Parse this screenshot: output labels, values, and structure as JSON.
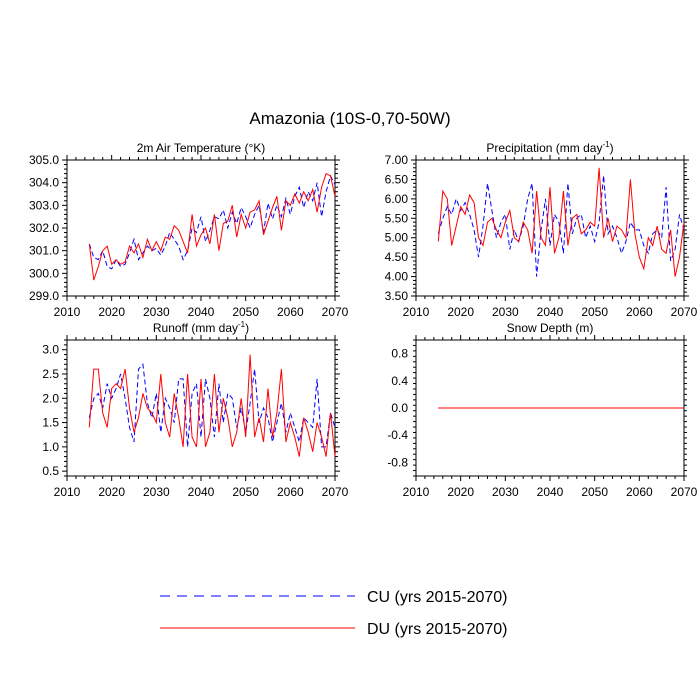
{
  "title": "Amazonia (10S-0,70-50W)",
  "colors": {
    "cu": "#0000ff",
    "du": "#ff0000",
    "axis": "#000000"
  },
  "legend": [
    {
      "name": "CU (yrs 2015-2070)",
      "style": "dashed",
      "color": "#0000ff"
    },
    {
      "name": "DU (yrs 2015-2070)",
      "style": "solid",
      "color": "#ff0000"
    }
  ],
  "chart_data": [
    {
      "type": "line",
      "title": "2m Air Temperature",
      "title_unit": "(°K)",
      "xlim": [
        2010,
        2070
      ],
      "ylim": [
        299.0,
        305.0
      ],
      "xticks": [
        2010,
        2020,
        2030,
        2040,
        2050,
        2060,
        2070
      ],
      "yticks": [
        299.0,
        300.0,
        301.0,
        302.0,
        303.0,
        304.0,
        305.0
      ],
      "ytick_labels": [
        "299.0",
        "300.0",
        "301.0",
        "302.0",
        "303.0",
        "304.0",
        "305.0"
      ],
      "x_start": 2015,
      "series": [
        {
          "name": "CU (yrs 2015-2070)",
          "values": [
            301.3,
            300.7,
            300.6,
            301.0,
            300.3,
            300.2,
            300.6,
            300.3,
            300.4,
            300.9,
            301.5,
            300.6,
            300.9,
            301.2,
            301.0,
            301.1,
            300.8,
            301.2,
            301.8,
            301.5,
            301.2,
            300.6,
            301.0,
            302.0,
            301.8,
            302.5,
            301.4,
            301.9,
            302.5,
            302.4,
            302.8,
            302.0,
            302.7,
            302.2,
            302.9,
            302.5,
            302.0,
            302.6,
            303.0,
            301.8,
            303.1,
            302.4,
            303.0,
            302.5,
            303.3,
            302.6,
            303.4,
            303.8,
            302.9,
            303.6,
            303.2,
            304.0,
            302.5,
            303.6,
            304.3,
            303.9
          ]
        },
        {
          "name": "DU (yrs 2015-2070)",
          "values": [
            301.3,
            299.7,
            300.3,
            301.0,
            301.2,
            300.4,
            300.6,
            300.4,
            300.5,
            301.2,
            300.9,
            301.3,
            300.7,
            301.5,
            301.0,
            301.4,
            301.0,
            301.6,
            301.5,
            302.1,
            301.9,
            301.4,
            300.9,
            302.6,
            301.2,
            301.7,
            302.0,
            301.3,
            302.6,
            301.0,
            302.2,
            302.3,
            303.0,
            301.6,
            302.6,
            302.0,
            302.7,
            302.8,
            303.2,
            301.7,
            302.3,
            302.9,
            303.4,
            301.9,
            303.2,
            303.0,
            303.5,
            303.1,
            303.6,
            303.2,
            303.7,
            302.7,
            303.8,
            304.4,
            304.3,
            303.4
          ]
        }
      ]
    },
    {
      "type": "line",
      "title": "Precipitation",
      "title_unit": "(mm day-1)",
      "xlim": [
        2010,
        2070
      ],
      "ylim": [
        3.5,
        7.0
      ],
      "xticks": [
        2010,
        2020,
        2030,
        2040,
        2050,
        2060,
        2070
      ],
      "yticks": [
        3.5,
        4.0,
        4.5,
        5.0,
        5.5,
        6.0,
        6.5,
        7.0
      ],
      "ytick_labels": [
        "3.50",
        "4.00",
        "4.50",
        "5.00",
        "5.50",
        "6.00",
        "6.50",
        "7.00"
      ],
      "x_start": 2015,
      "series": [
        {
          "name": "CU (yrs 2015-2070)",
          "values": [
            5.1,
            5.5,
            5.8,
            5.6,
            6.0,
            5.7,
            5.9,
            5.6,
            5.2,
            4.5,
            5.3,
            6.4,
            5.7,
            5.0,
            5.4,
            5.6,
            4.7,
            5.2,
            4.9,
            5.3,
            6.0,
            6.4,
            4.0,
            5.2,
            6.0,
            4.8,
            5.6,
            5.4,
            4.6,
            6.4,
            5.1,
            5.5,
            5.6,
            5.0,
            5.3,
            4.9,
            5.4,
            6.6,
            5.1,
            5.3,
            5.0,
            4.6,
            4.9,
            5.4,
            5.2,
            5.2,
            4.8,
            4.6,
            5.1,
            5.2,
            5.0,
            6.3,
            4.4,
            4.7,
            5.6,
            5.2
          ]
        },
        {
          "name": "DU (yrs 2015-2070)",
          "values": [
            4.9,
            6.2,
            6.0,
            4.8,
            5.3,
            5.8,
            5.6,
            6.1,
            5.9,
            5.0,
            4.8,
            5.4,
            5.5,
            5.2,
            5.0,
            5.4,
            5.7,
            5.0,
            4.9,
            5.4,
            5.2,
            4.6,
            6.2,
            5.0,
            4.8,
            6.3,
            4.6,
            5.0,
            6.2,
            4.8,
            5.5,
            5.6,
            5.1,
            5.2,
            5.4,
            5.3,
            6.8,
            5.0,
            5.5,
            4.9,
            5.3,
            5.2,
            5.0,
            6.5,
            5.1,
            4.5,
            4.2,
            5.0,
            4.8,
            5.3,
            4.7,
            4.6,
            5.2,
            4.0,
            4.5,
            5.4
          ]
        }
      ]
    },
    {
      "type": "line",
      "title": "Runoff",
      "title_unit": "(mm day-1)",
      "xlim": [
        2010,
        2070
      ],
      "ylim": [
        0.4,
        3.2
      ],
      "xticks": [
        2010,
        2020,
        2030,
        2040,
        2050,
        2060,
        2070
      ],
      "yticks": [
        0.5,
        1.0,
        1.5,
        2.0,
        2.5,
        3.0
      ],
      "ytick_labels": [
        "0.5",
        "1.0",
        "1.5",
        "2.0",
        "2.5",
        "3.0"
      ],
      "x_start": 2015,
      "series": [
        {
          "name": "CU (yrs 2015-2070)",
          "values": [
            1.6,
            2.0,
            2.1,
            1.8,
            2.3,
            2.0,
            2.2,
            2.5,
            2.0,
            1.4,
            1.1,
            2.6,
            2.7,
            1.9,
            1.6,
            2.1,
            1.3,
            2.0,
            1.8,
            1.5,
            2.4,
            2.4,
            1.0,
            2.1,
            2.3,
            1.2,
            2.4,
            2.0,
            1.2,
            2.3,
            1.5,
            2.1,
            2.0,
            1.4,
            1.8,
            1.3,
            1.9,
            2.6,
            1.5,
            1.8,
            1.6,
            1.1,
            1.5,
            1.9,
            1.3,
            1.7,
            1.4,
            1.1,
            1.6,
            1.5,
            1.4,
            2.4,
            1.0,
            1.0,
            1.7,
            1.4
          ]
        },
        {
          "name": "DU (yrs 2015-2070)",
          "values": [
            1.4,
            2.6,
            2.6,
            1.7,
            1.4,
            2.2,
            2.3,
            2.2,
            2.6,
            1.8,
            1.3,
            1.6,
            2.1,
            1.8,
            1.7,
            1.5,
            2.5,
            1.5,
            1.2,
            2.1,
            1.6,
            1.0,
            2.5,
            1.2,
            1.0,
            2.4,
            1.0,
            1.3,
            2.5,
            1.3,
            2.0,
            1.6,
            1.0,
            1.3,
            2.0,
            1.2,
            2.9,
            1.2,
            1.6,
            1.1,
            2.2,
            1.2,
            1.7,
            2.6,
            1.1,
            1.5,
            1.2,
            0.8,
            1.6,
            1.3,
            0.9,
            1.5,
            1.2,
            0.8,
            1.7,
            0.8
          ]
        }
      ]
    },
    {
      "type": "line",
      "title": "Snow Depth",
      "title_unit": "(m)",
      "xlim": [
        2010,
        2070
      ],
      "ylim": [
        -1.0,
        1.0
      ],
      "xticks": [
        2010,
        2020,
        2030,
        2040,
        2050,
        2060,
        2070
      ],
      "yticks": [
        -0.8,
        -0.4,
        0.0,
        0.4,
        0.8
      ],
      "ytick_labels": [
        "-0.8",
        "-0.4",
        "0.0",
        "0.4",
        "0.8"
      ],
      "x_start": 2015,
      "series": [
        {
          "name": "CU (yrs 2015-2070)",
          "values": [
            0.0,
            0.0
          ],
          "x": [
            2015,
            2070
          ]
        },
        {
          "name": "DU (yrs 2015-2070)",
          "values": [
            0.0,
            0.0
          ],
          "x": [
            2015,
            2070
          ]
        }
      ]
    }
  ]
}
